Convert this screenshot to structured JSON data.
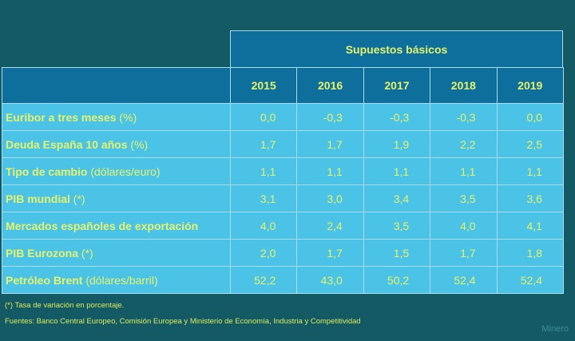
{
  "table": {
    "super_header": "Supuestos básicos",
    "years": [
      "2015",
      "2016",
      "2017",
      "2018",
      "2019"
    ],
    "rows": [
      {
        "label": "Euribor a tres meses",
        "unit": "(%)",
        "values": [
          "0,0",
          "-0,3",
          "-0,3",
          "-0,3",
          "0,0"
        ]
      },
      {
        "label": "Deuda España 10 años",
        "unit": "(%)",
        "values": [
          "1,7",
          "1,7",
          "1,9",
          "2,2",
          "2,5"
        ]
      },
      {
        "label": "Tipo de cambio",
        "unit": "(dólares/euro)",
        "values": [
          "1,1",
          "1,1",
          "1,1",
          "1,1",
          "1,1"
        ]
      },
      {
        "label": "PIB mundial",
        "unit": "(*)",
        "values": [
          "3,1",
          "3,0",
          "3,4",
          "3,5",
          "3,6"
        ]
      },
      {
        "label": "Mercados españoles de exportación",
        "unit": "",
        "values": [
          "4,0",
          "2,4",
          "3,5",
          "4,0",
          "4,1"
        ]
      },
      {
        "label": "PIB Eurozona",
        "unit": "(*)",
        "values": [
          "2,0",
          "1,7",
          "1,5",
          "1,7",
          "1,8"
        ]
      },
      {
        "label": "Petróleo Brent",
        "unit": "(dólares/barril)",
        "values": [
          "52,2",
          "43,0",
          "50,2",
          "52,4",
          "52,4"
        ]
      }
    ]
  },
  "footnote": "(*) Tasa de variación en porcentaje.",
  "sources": "Fuentes: Banco Central Europeo,  Comisión Europea y Ministerio de Economía, Industria y Competitividad",
  "watermark": "Minero",
  "colors": {
    "background": "#145a64",
    "header": "#0e6f9c",
    "row": "#4bc3e6",
    "text": "#e4f26a"
  }
}
